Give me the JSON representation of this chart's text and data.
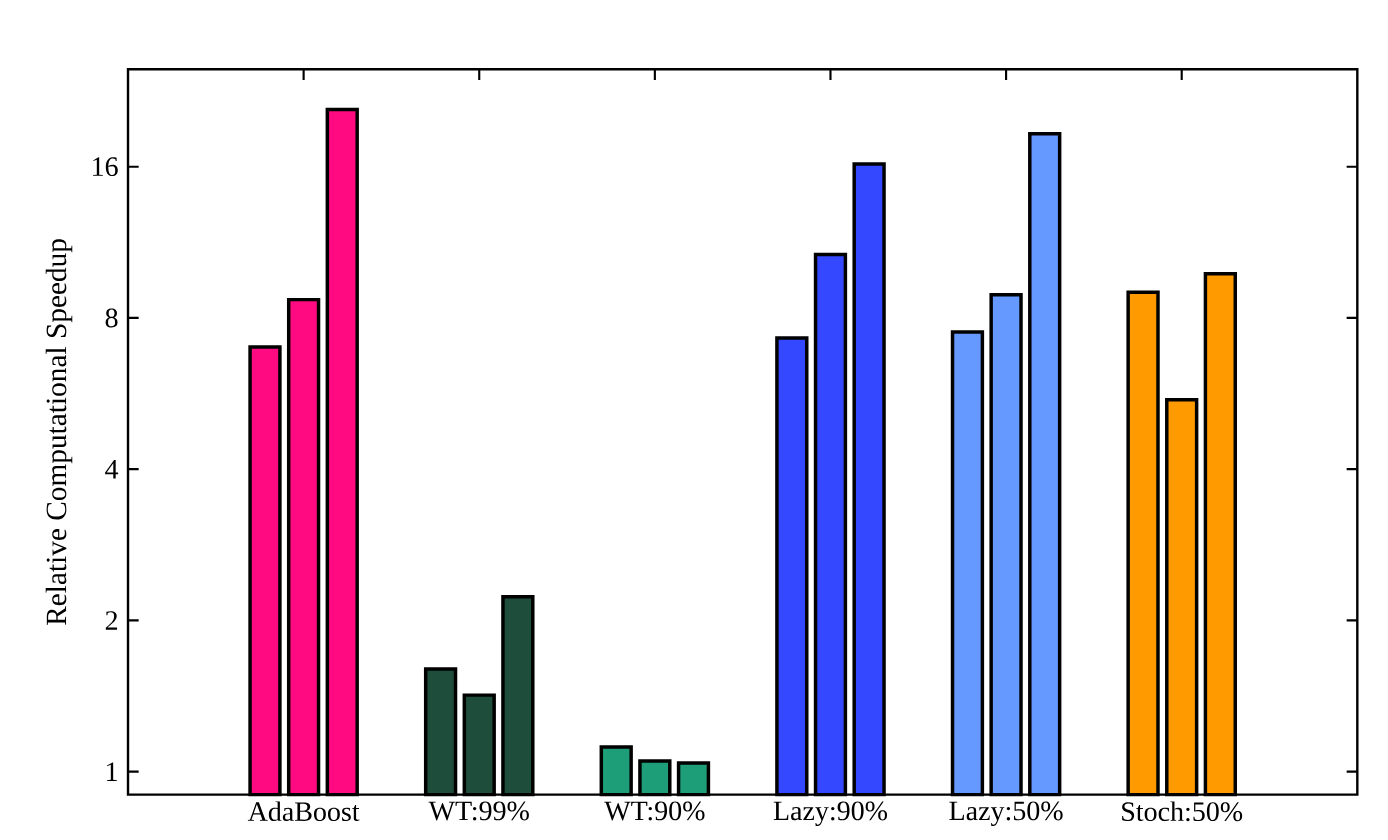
{
  "chart_data": {
    "type": "bar",
    "ylabel": "Relative Computational Speedup",
    "categories": [
      "AdaBoost",
      "WT:99%",
      "WT:90%",
      "Lazy:90%",
      "Lazy:50%",
      "Stoch:50%"
    ],
    "series": [
      {
        "colors": [
          "#ff0a80",
          "#1e4d3c",
          "#1e9e78",
          "#3348ff",
          "#6699ff",
          "#ff9a00"
        ],
        "values": [
          7.0,
          1.6,
          1.12,
          7.3,
          7.5,
          9.0
        ]
      },
      {
        "colors": [
          "#ff0a80",
          "#1e4d3c",
          "#1e9e78",
          "#3348ff",
          "#6699ff",
          "#ff9a00"
        ],
        "values": [
          8.7,
          1.42,
          1.05,
          10.7,
          8.9,
          5.5
        ]
      },
      {
        "colors": [
          "#ff0a80",
          "#1e4d3c",
          "#1e9e78",
          "#3348ff",
          "#6699ff",
          "#ff9a00"
        ],
        "values": [
          20.8,
          2.23,
          1.04,
          16.2,
          18.6,
          9.8
        ]
      }
    ],
    "log": "y",
    "ylim": [
      0.9,
      25
    ],
    "yticks": [
      1,
      2,
      4,
      8,
      16
    ]
  }
}
